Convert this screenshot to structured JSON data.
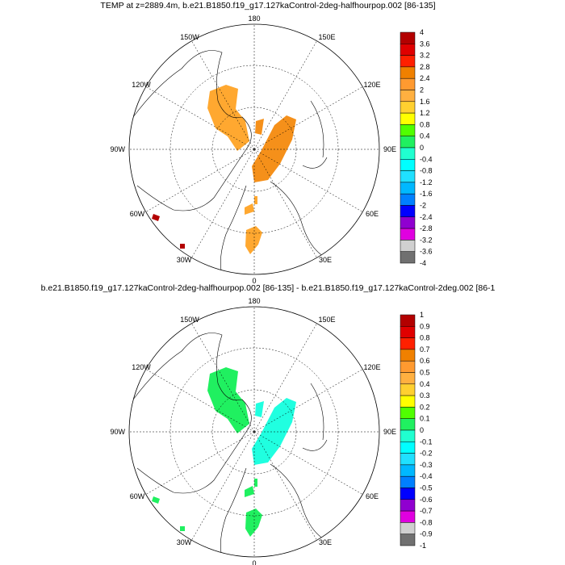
{
  "panels": [
    {
      "title": "TEMP at z=2889.4m, b.e21.B1850.f19_g17.127kaControl-2deg-halfhourpop.002 [86-135]",
      "levels": [
        "4",
        "3.6",
        "3.2",
        "2.8",
        "2.4",
        "2",
        "1.6",
        "1.2",
        "0.8",
        "0.4",
        "0",
        "-0.4",
        "-0.8",
        "-1.2",
        "-1.6",
        "-2",
        "-2.4",
        "-2.8",
        "-3.2",
        "-3.6",
        "-4"
      ],
      "fill_color": "#ffa830",
      "fill_color2": "#f5901a",
      "edge_color": "#b30000"
    },
    {
      "title": "b.e21.B1850.f19_g17.127kaControl-2deg-halfhourpop.002 [86-135] - b.e21.B1850.f19_g17.127kaControl-2deg.002 [86-1",
      "levels": [
        "1",
        "0.9",
        "0.8",
        "0.7",
        "0.6",
        "0.5",
        "0.4",
        "0.3",
        "0.2",
        "0.1",
        "0",
        "-0.1",
        "-0.2",
        "-0.3",
        "-0.4",
        "-0.5",
        "-0.6",
        "-0.7",
        "-0.8",
        "-0.9",
        "-1"
      ],
      "fill_color": "#20f060",
      "fill_color2": "#20ffe0",
      "edge_color": "#20f060"
    }
  ],
  "lon_labels": {
    "top": "180",
    "bottom": "0",
    "left": "90W",
    "right": "90E",
    "ul": "150W",
    "ur": "150E",
    "lu": "120W",
    "ru": "120E",
    "ll": "60W",
    "rl": "60E",
    "bl": "30W",
    "br": "30E"
  },
  "colorbar_colors": [
    "#b30000",
    "#e00000",
    "#ff2000",
    "#f08000",
    "#ff9a30",
    "#ffb040",
    "#ffd030",
    "#ffff00",
    "#50ff00",
    "#20f060",
    "#20ffd0",
    "#00ffff",
    "#20e0ff",
    "#00b8ff",
    "#0080ff",
    "#0000ff",
    "#9000d0",
    "#e000e0",
    "#d0d0d0",
    "#707070"
  ]
}
